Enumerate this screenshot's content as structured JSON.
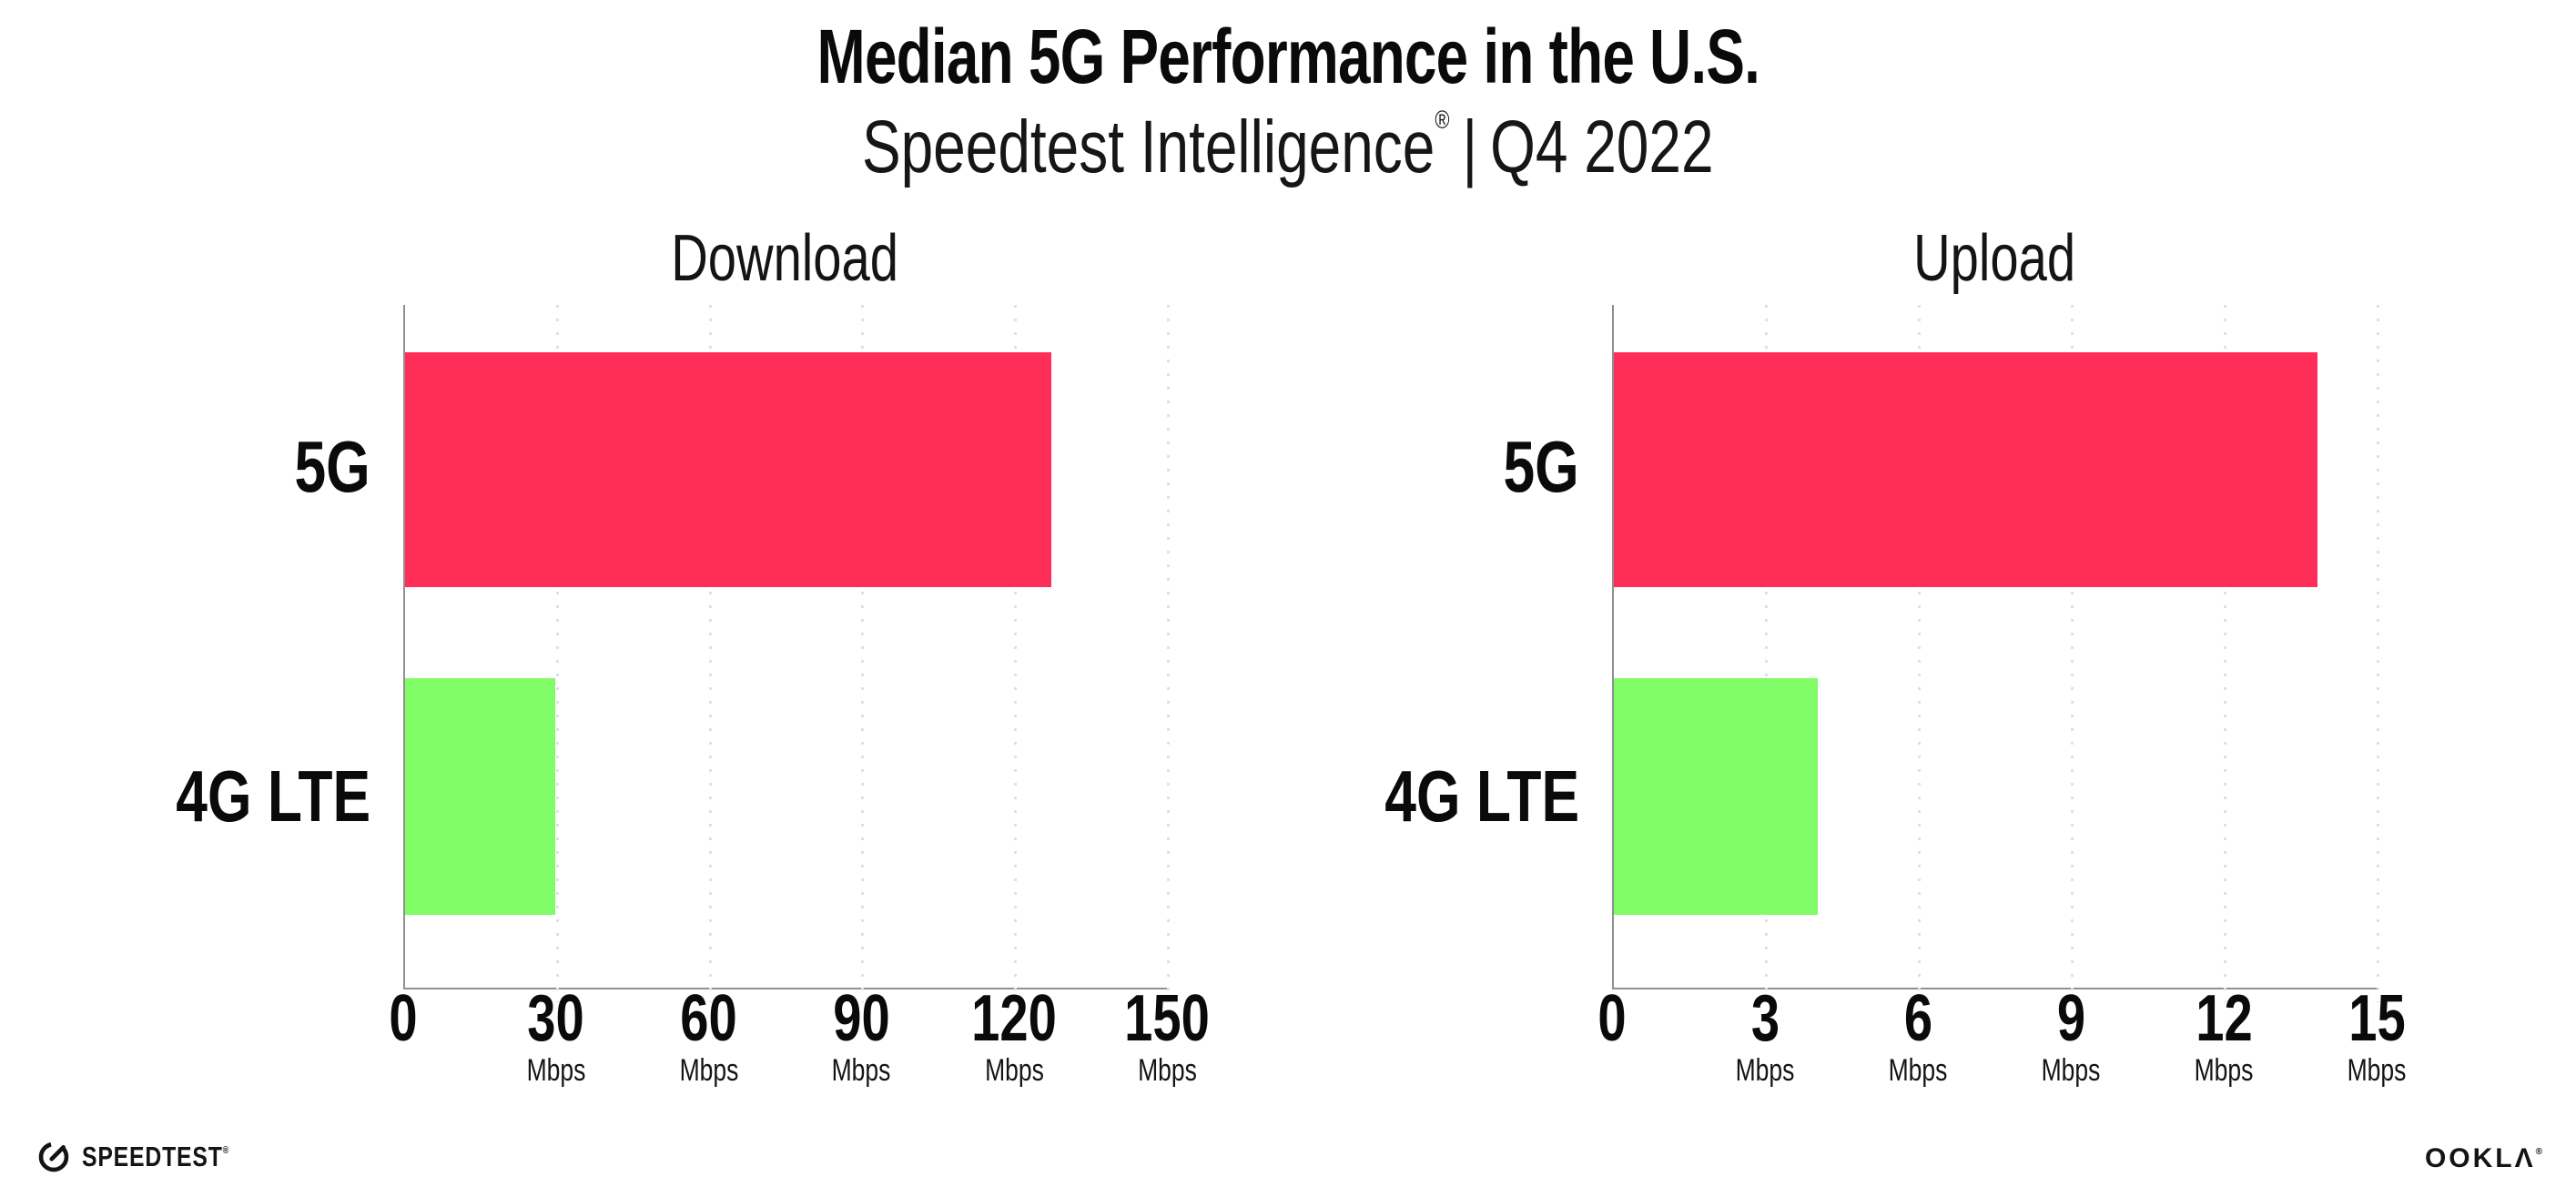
{
  "header": {
    "title": "Median 5G Performance in the U.S.",
    "subtitle_brand": "Speedtest Intelligence",
    "subtitle_trademark": "®",
    "subtitle_separator": "|",
    "subtitle_period": "Q4 2022"
  },
  "chart_data": [
    {
      "type": "bar",
      "orientation": "horizontal",
      "title": "Download",
      "categories": [
        "5G",
        "4G LTE"
      ],
      "values": [
        127,
        29.5
      ],
      "unit": "Mbps",
      "xlim": [
        0,
        150
      ],
      "xticks": [
        "0",
        "30",
        "60",
        "90",
        "120",
        "150"
      ],
      "bar_colors": [
        "#FF2E59",
        "#80FC66"
      ],
      "grid": "vertical dotted lines at each tick",
      "legend": "none"
    },
    {
      "type": "bar",
      "orientation": "horizontal",
      "title": "Upload",
      "categories": [
        "5G",
        "4G LTE"
      ],
      "values": [
        13.8,
        4
      ],
      "unit": "Mbps",
      "xlim": [
        0,
        15
      ],
      "xticks": [
        "0",
        "3",
        "6",
        "9",
        "12",
        "15"
      ],
      "bar_colors": [
        "#FF2E59",
        "#80FC66"
      ],
      "grid": "vertical dotted lines at each tick",
      "legend": "none"
    }
  ],
  "footer": {
    "speedtest_label": "SPEEDTEST",
    "speedtest_trademark": "®",
    "ookla_label": "OOKLΛ",
    "ookla_trademark": "®"
  },
  "colors": {
    "bar_5g": "#FF2E59",
    "bar_4g_lte": "#80FC66",
    "axis_line": "#8f8f96",
    "gridline_dots": "#dfdfe9",
    "text": "#0a0a0a"
  }
}
